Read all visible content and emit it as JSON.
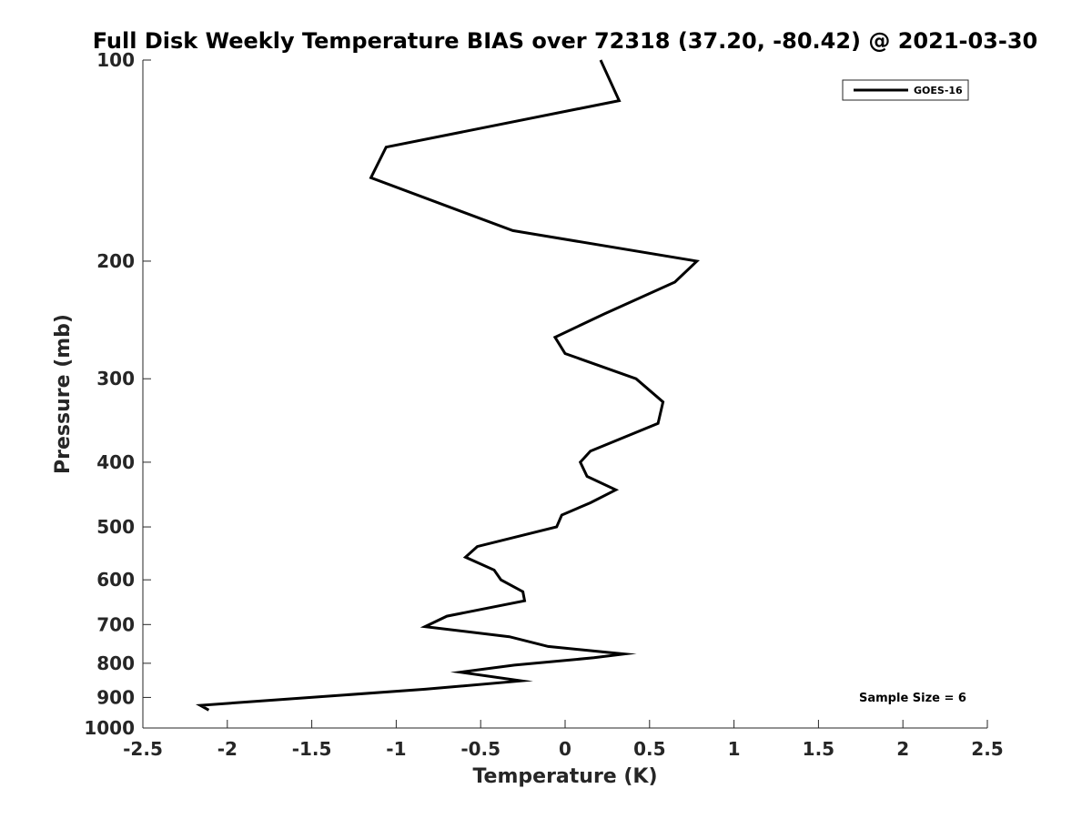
{
  "chart_data": {
    "type": "line",
    "title": "Full Disk Weekly Temperature BIAS over 72318 (37.20, -80.42) @ 2021-03-30",
    "xlabel": "Temperature (K)",
    "ylabel": "Pressure (mb)",
    "xlim": [
      -2.5,
      2.5
    ],
    "ylim": [
      100,
      1000
    ],
    "y_scale": "log",
    "y_reversed": true,
    "grid": false,
    "legend_position": "top-right",
    "x_ticks": [
      {
        "value": -2.5,
        "label": "-2.5"
      },
      {
        "value": -2,
        "label": "-2"
      },
      {
        "value": -1.5,
        "label": "-1.5"
      },
      {
        "value": -1,
        "label": "-1"
      },
      {
        "value": -0.5,
        "label": "-0.5"
      },
      {
        "value": 0,
        "label": "0"
      },
      {
        "value": 0.5,
        "label": "0.5"
      },
      {
        "value": 1,
        "label": "1"
      },
      {
        "value": 1.5,
        "label": "1.5"
      },
      {
        "value": 2,
        "label": "2"
      },
      {
        "value": 2.5,
        "label": "2.5"
      }
    ],
    "y_ticks": [
      {
        "value": 100,
        "label": "100"
      },
      {
        "value": 200,
        "label": "200"
      },
      {
        "value": 300,
        "label": "300"
      },
      {
        "value": 400,
        "label": "400"
      },
      {
        "value": 500,
        "label": "500"
      },
      {
        "value": 600,
        "label": "600"
      },
      {
        "value": 700,
        "label": "700"
      },
      {
        "value": 800,
        "label": "800"
      },
      {
        "value": 900,
        "label": "900"
      },
      {
        "value": 1000,
        "label": "1000"
      }
    ],
    "series": [
      {
        "name": "GOES-16",
        "color": "#000000",
        "points": [
          {
            "x": 0.21,
            "y": 100
          },
          {
            "x": 0.32,
            "y": 115
          },
          {
            "x": -1.06,
            "y": 135
          },
          {
            "x": -1.15,
            "y": 150
          },
          {
            "x": -0.31,
            "y": 180
          },
          {
            "x": 0.78,
            "y": 200
          },
          {
            "x": 0.65,
            "y": 215
          },
          {
            "x": 0.23,
            "y": 240
          },
          {
            "x": -0.06,
            "y": 260
          },
          {
            "x": 0.0,
            "y": 275
          },
          {
            "x": 0.42,
            "y": 300
          },
          {
            "x": 0.58,
            "y": 325
          },
          {
            "x": 0.55,
            "y": 350
          },
          {
            "x": 0.15,
            "y": 385
          },
          {
            "x": 0.09,
            "y": 400
          },
          {
            "x": 0.13,
            "y": 420
          },
          {
            "x": 0.3,
            "y": 440
          },
          {
            "x": 0.15,
            "y": 460
          },
          {
            "x": -0.02,
            "y": 480
          },
          {
            "x": -0.05,
            "y": 500
          },
          {
            "x": -0.52,
            "y": 535
          },
          {
            "x": -0.59,
            "y": 555
          },
          {
            "x": -0.42,
            "y": 580
          },
          {
            "x": -0.38,
            "y": 600
          },
          {
            "x": -0.25,
            "y": 625
          },
          {
            "x": -0.24,
            "y": 645
          },
          {
            "x": -0.7,
            "y": 680
          },
          {
            "x": -0.83,
            "y": 705
          },
          {
            "x": -0.33,
            "y": 730
          },
          {
            "x": -0.1,
            "y": 755
          },
          {
            "x": 0.35,
            "y": 775
          },
          {
            "x": 0.17,
            "y": 785
          },
          {
            "x": -0.3,
            "y": 805
          },
          {
            "x": -0.62,
            "y": 825
          },
          {
            "x": -0.26,
            "y": 850
          },
          {
            "x": -0.83,
            "y": 875
          },
          {
            "x": -2.16,
            "y": 925
          },
          {
            "x": -2.11,
            "y": 940
          }
        ]
      }
    ],
    "annotations": [
      {
        "text": "Sample Size = 6"
      }
    ]
  }
}
